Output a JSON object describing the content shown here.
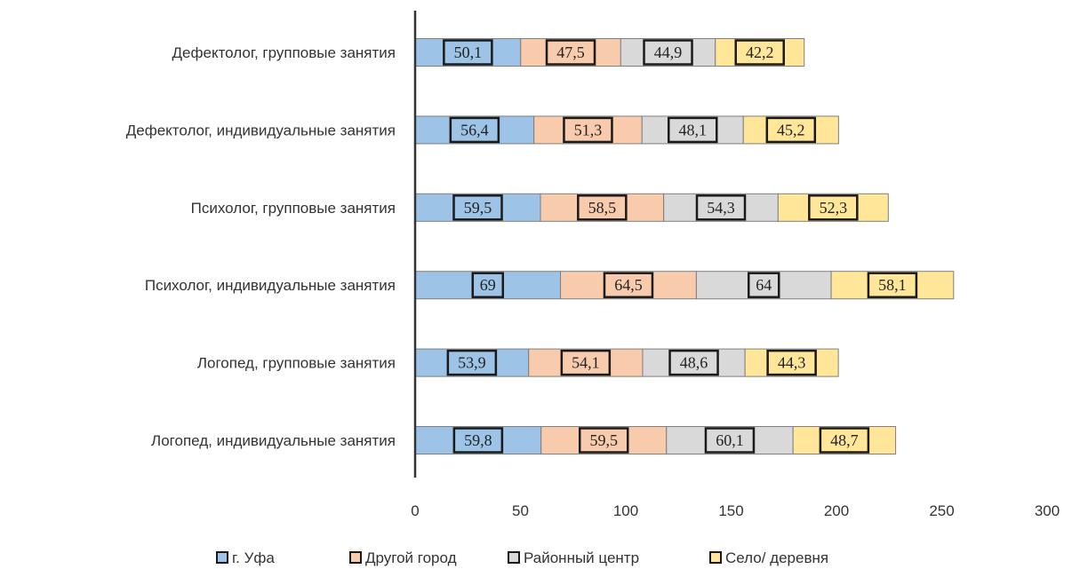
{
  "chart_data": {
    "type": "bar",
    "orientation": "horizontal",
    "stacked": true,
    "categories": [
      "Дефектолог, групповые занятия",
      "Дефектолог, индивидуальные занятия",
      "Психолог, групповые занятия",
      "Психолог, индивидуальные занятия",
      "Логопед, групповые занятия",
      "Логопед, индивидуальные занятия"
    ],
    "series": [
      {
        "name": "г. Уфа",
        "color": "#9dc3e6",
        "values": [
          50.1,
          56.4,
          59.5,
          69,
          53.9,
          59.8
        ],
        "labels": [
          "50,1",
          "56,4",
          "59,5",
          "69",
          "53,9",
          "59,8"
        ]
      },
      {
        "name": "Другой город",
        "color": "#f8cbad",
        "values": [
          47.5,
          51.3,
          58.5,
          64.5,
          54.1,
          59.5
        ],
        "labels": [
          "47,5",
          "51,3",
          "58,5",
          "64,5",
          "54,1",
          "59,5"
        ]
      },
      {
        "name": "Районный центр",
        "color": "#d9d9d9",
        "values": [
          44.9,
          48.1,
          54.3,
          64,
          48.6,
          60.1
        ],
        "labels": [
          "44,9",
          "48,1",
          "54,3",
          "64",
          "48,6",
          "60,1"
        ]
      },
      {
        "name": "Село/ деревня",
        "color": "#ffe699",
        "values": [
          42.2,
          45.2,
          52.3,
          58.1,
          44.3,
          48.7
        ],
        "labels": [
          "42,2",
          "45,2",
          "52,3",
          "58,1",
          "44,3",
          "48,7"
        ]
      }
    ],
    "xlim": [
      0,
      300
    ],
    "xticks": [
      0,
      50,
      100,
      150,
      200,
      250,
      300
    ],
    "grid": false,
    "legend_position": "bottom",
    "title": "",
    "xlabel": "",
    "ylabel": ""
  }
}
